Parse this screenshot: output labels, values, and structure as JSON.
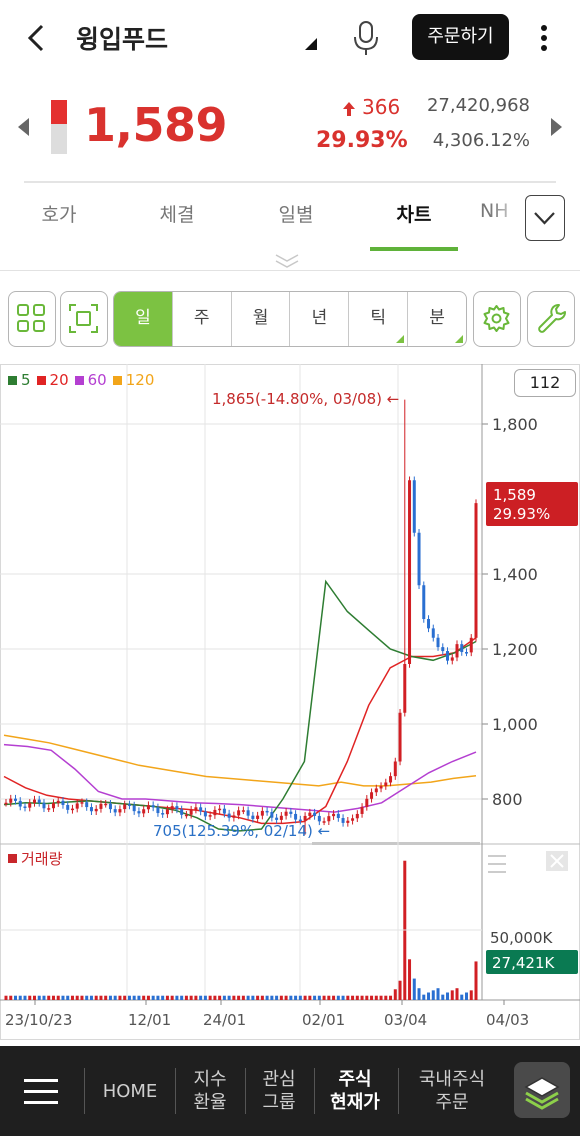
{
  "header": {
    "stock_name": "윙입푸드",
    "order_button": "주문하기"
  },
  "quote": {
    "price": "1,589",
    "change": "366",
    "change_pct": "29.93%",
    "volume": "27,420,968",
    "turnover_pct": "4,306.12%",
    "range_position": 0.45,
    "up_color": "#d9322e"
  },
  "tabs": [
    {
      "label": "호가"
    },
    {
      "label": "체결"
    },
    {
      "label": "일별"
    },
    {
      "label": "차트",
      "active": true
    },
    {
      "label": "NH"
    }
  ],
  "toolbar": {
    "periods": [
      {
        "label": "일",
        "active": true
      },
      {
        "label": "주"
      },
      {
        "label": "월"
      },
      {
        "label": "년"
      },
      {
        "label": "틱",
        "menu": true
      },
      {
        "label": "분",
        "menu": true
      }
    ]
  },
  "chart_data": {
    "type": "candlestick",
    "legend": [
      {
        "label": "5",
        "color": "#2e7d32"
      },
      {
        "label": "20",
        "color": "#e02424"
      },
      {
        "label": "60",
        "color": "#b43fd1"
      },
      {
        "label": "120",
        "color": "#f2a51a"
      }
    ],
    "period_count": "112",
    "y_ticks": [
      "1,800",
      "1,400",
      "1,200",
      "1,000",
      "800"
    ],
    "y_tick_values": [
      1800,
      1400,
      1200,
      1000,
      800
    ],
    "x_ticks": [
      "23/10/23",
      "12/01",
      "24/01",
      "02/01",
      "03/04",
      "04/03"
    ],
    "high_annotation": "1,865(-14.80%, 03/08)",
    "low_annotation": "705(125.39%, 02/14)",
    "current_price_tag": "1,589",
    "current_pct_tag": "29.93%",
    "volume_label": "거래량",
    "volume_tick": "50,000K",
    "volume_tag": "27,421K",
    "ylim": [
      680,
      1960
    ],
    "ma_5": [
      785,
      790,
      788,
      792,
      795,
      790,
      785,
      780,
      770,
      750,
      720,
      715,
      720,
      800,
      900,
      1380,
      1300,
      1250,
      1200,
      1180,
      1170,
      1190,
      1220
    ],
    "ma_20": [
      860,
      830,
      810,
      800,
      795,
      790,
      785,
      780,
      775,
      770,
      760,
      750,
      735,
      735,
      740,
      780,
      900,
      1050,
      1150,
      1180,
      1180,
      1190,
      1230
    ],
    "ma_60": [
      945,
      940,
      930,
      880,
      820,
      800,
      800,
      795,
      790,
      788,
      785,
      780,
      775,
      770,
      765,
      775,
      790,
      830,
      870,
      900,
      925
    ],
    "ma_120": [
      970,
      960,
      950,
      935,
      920,
      905,
      890,
      880,
      870,
      860,
      855,
      850,
      845,
      840,
      835,
      845,
      835,
      835,
      840,
      845,
      855,
      862
    ]
  },
  "bottom_nav": {
    "home": "HOME",
    "index_line1": "지수",
    "index_line2": "환율",
    "watch_line1": "관심",
    "watch_line2": "그룹",
    "stock_line1": "주식",
    "stock_line2": "현재가",
    "order_line1": "국내주식",
    "order_line2": "주문"
  }
}
